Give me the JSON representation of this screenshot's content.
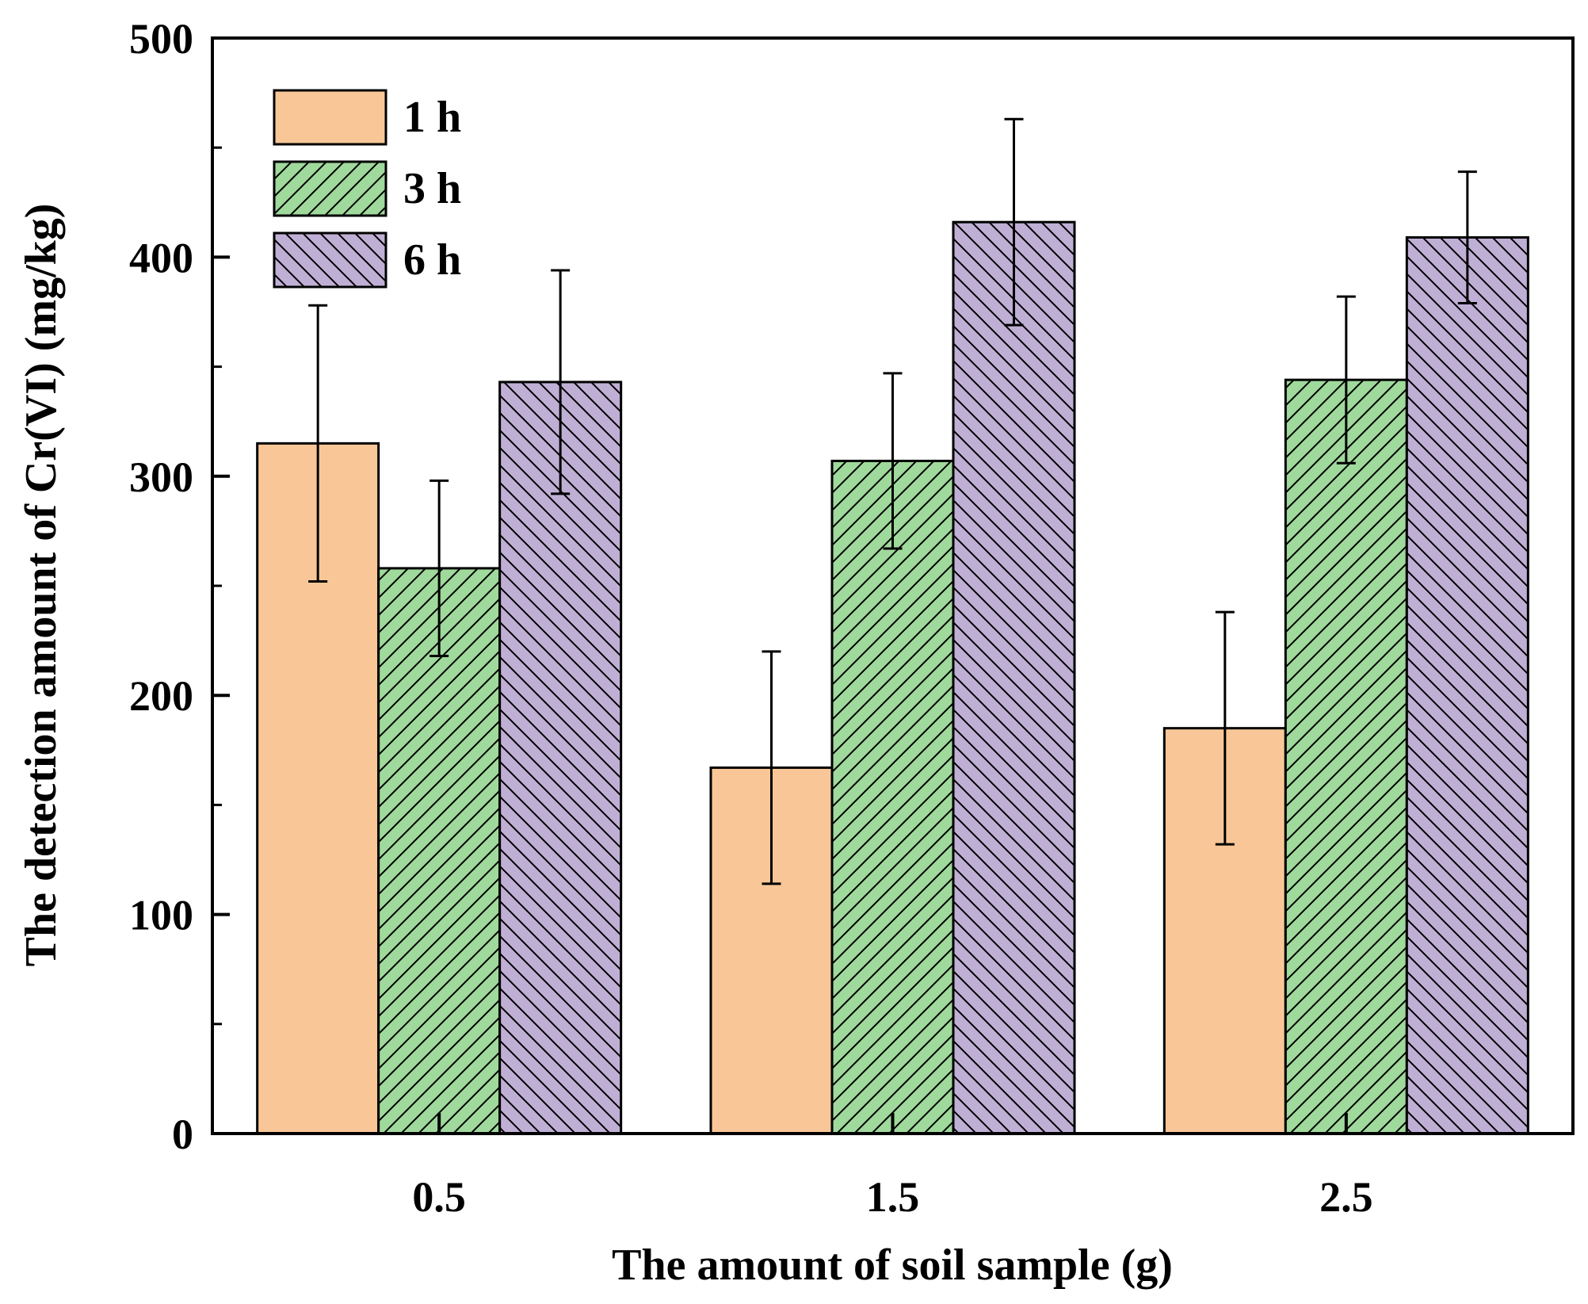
{
  "chart_data": {
    "type": "bar",
    "title": "",
    "xlabel": "The amount of soil sample (g)",
    "ylabel": "The detection amount of Cr(VI) (mg/kg)",
    "ylim": [
      0,
      500
    ],
    "yticks": [
      "0",
      "100",
      "200",
      "300",
      "400",
      "500"
    ],
    "categories": [
      "0.5",
      "1.5",
      "2.5"
    ],
    "legend_position": "top-left",
    "series": [
      {
        "name": "1 h",
        "values": [
          315,
          167,
          185
        ],
        "errors": [
          63,
          53,
          53
        ],
        "color": "#f9c797",
        "hatch": "none"
      },
      {
        "name": "3 h",
        "values": [
          258,
          307,
          344
        ],
        "errors": [
          40,
          40,
          38
        ],
        "color": "#9fd99b",
        "hatch": "forward"
      },
      {
        "name": "6 h",
        "values": [
          343,
          416,
          409
        ],
        "errors": [
          51,
          47,
          30
        ],
        "color": "#c0afd5",
        "hatch": "backward"
      }
    ]
  }
}
